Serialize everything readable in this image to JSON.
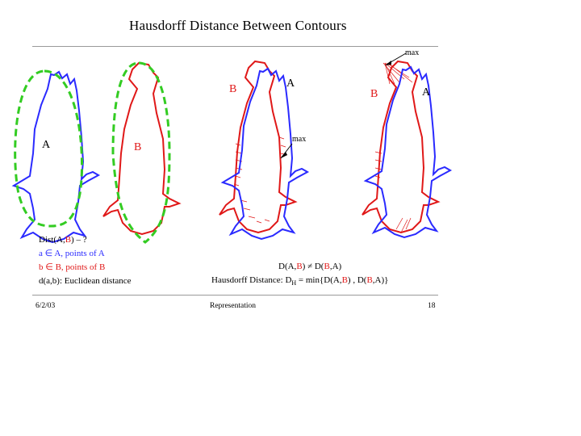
{
  "title": "Hausdorff Distance Between Contours",
  "labels": {
    "a1": "A",
    "b1": "B",
    "b3": "B",
    "a3": "A",
    "max3": "max",
    "b4": "B",
    "a4": "A",
    "max4": "max"
  },
  "left_text": {
    "dist": "Dist(A,B) – ?",
    "dist_a": "Dist(A,",
    "dist_b": "B",
    "dist_end": ") – ?",
    "pts_a": "a ∈ A, points of A",
    "pts_b": "b ∈ B, points of B",
    "euclid": "d(a,b): Euclidean distance"
  },
  "right_text": {
    "neq": "D(A,B) ≠ D(B,A)",
    "neq_parts": [
      "D(A,",
      "B",
      ") ≠ D(",
      "B",
      ",A)"
    ],
    "hd_prefix": "Hausdorff Distance: D",
    "hd_sub": "H",
    "hd_mid": " = min{D(A,",
    "hd_b1": "B",
    "hd_mid2": ") , D(",
    "hd_b2": "B",
    "hd_end": ",A)}"
  },
  "footer": {
    "date": "6/2/03",
    "center": "Representation",
    "page": "18"
  },
  "colors": {
    "blue": "#2a2aff",
    "red": "#e01818",
    "green": "#33cc22",
    "rule": "#9a9a9a"
  }
}
